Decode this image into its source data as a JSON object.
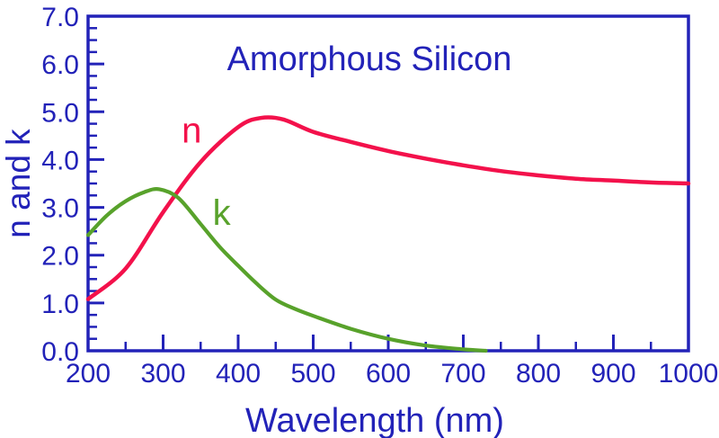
{
  "page": {
    "background": "#FFFFFF"
  },
  "chart_data": {
    "type": "line",
    "title": "Amorphous Silicon",
    "xlabel": "Wavelength (nm)",
    "ylabel": "n and k",
    "xlim": [
      200,
      1000
    ],
    "ylim": [
      0.0,
      7.0
    ],
    "grid": false,
    "legend": "inline series labels on curves",
    "axis_color": "#2222B8",
    "text_color": "#2222B8",
    "x_major_ticks": [
      200,
      300,
      400,
      500,
      600,
      700,
      800,
      900,
      1000
    ],
    "x_tick_labels": [
      "200",
      "300",
      "400",
      "500",
      "600",
      "700",
      "800",
      "900",
      "1000"
    ],
    "x_minor_ticks": [
      250,
      350,
      450,
      550,
      650,
      750,
      850,
      950
    ],
    "y_major_ticks": [
      0,
      1,
      2,
      3,
      4,
      5,
      6,
      7
    ],
    "y_tick_labels": [
      "0.0",
      "1.0",
      "2.0",
      "3.0",
      "4.0",
      "5.0",
      "6.0",
      "7.0"
    ],
    "y_minor_tick_step": 0.25,
    "series": [
      {
        "name": "n",
        "color": "#F3114B",
        "label_at": {
          "x": 338,
          "y": 4.62
        },
        "x": [
          200,
          250,
          300,
          350,
          400,
          430,
          460,
          500,
          550,
          600,
          650,
          700,
          750,
          800,
          850,
          900,
          950,
          1000
        ],
        "y": [
          1.08,
          1.72,
          2.9,
          3.95,
          4.68,
          4.87,
          4.84,
          4.58,
          4.37,
          4.18,
          4.02,
          3.88,
          3.76,
          3.67,
          3.6,
          3.56,
          3.52,
          3.5
        ]
      },
      {
        "name": "k",
        "color": "#58A22B",
        "label_at": {
          "x": 378,
          "y": 2.9
        },
        "x": [
          200,
          225,
          250,
          275,
          295,
          320,
          350,
          375,
          400,
          425,
          450,
          475,
          500,
          550,
          600,
          650,
          700,
          730
        ],
        "y": [
          2.42,
          2.83,
          3.13,
          3.32,
          3.38,
          3.2,
          2.65,
          2.18,
          1.78,
          1.4,
          1.07,
          0.88,
          0.73,
          0.46,
          0.25,
          0.11,
          0.03,
          0.0
        ]
      }
    ]
  }
}
